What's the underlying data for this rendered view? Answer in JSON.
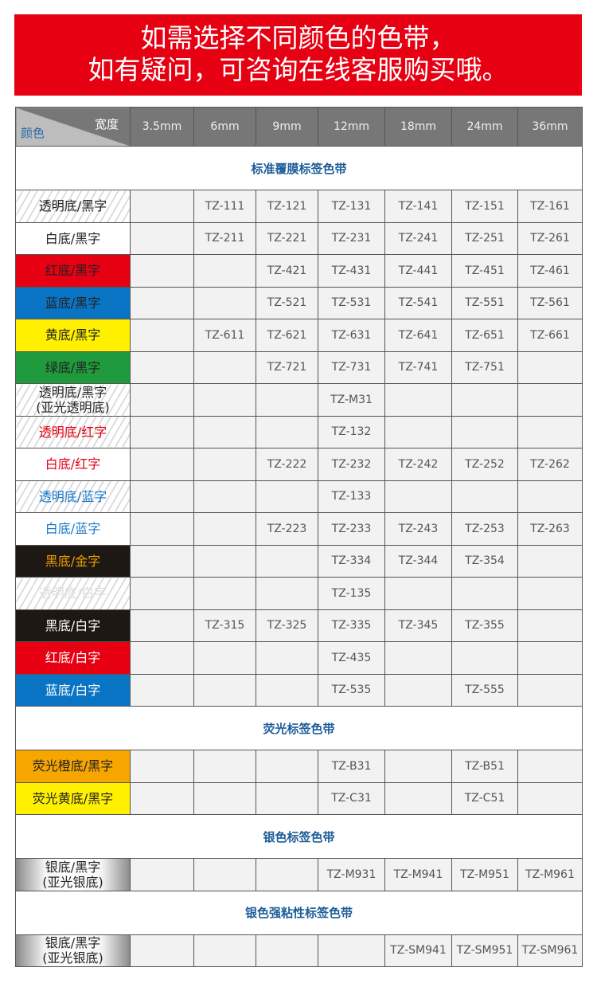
{
  "banner": {
    "line1": "如需选择不同颜色的色带，",
    "line2": "如有疑问，可咨询在线客服购买哦。"
  },
  "header": {
    "width_label": "宽度",
    "color_label": "颜色",
    "columns": [
      "3.5mm",
      "6mm",
      "9mm",
      "12mm",
      "18mm",
      "24mm",
      "36mm"
    ]
  },
  "sections": [
    {
      "title": "标准覆膜标签色带",
      "rows": [
        {
          "label": "透明底/黑字",
          "style": "striped",
          "fg": "#222222",
          "bg": "",
          "cells": [
            "",
            "TZ-111",
            "TZ-121",
            "TZ-131",
            "TZ-141",
            "TZ-151",
            "TZ-161"
          ]
        },
        {
          "label": "白底/黑字",
          "style": "",
          "fg": "#222222",
          "bg": "#ffffff",
          "cells": [
            "",
            "TZ-211",
            "TZ-221",
            "TZ-231",
            "TZ-241",
            "TZ-251",
            "TZ-261"
          ]
        },
        {
          "label": "红底/黑字",
          "style": "",
          "fg": "#222222",
          "bg": "#e60012",
          "cells": [
            "",
            "",
            "TZ-421",
            "TZ-431",
            "TZ-441",
            "TZ-451",
            "TZ-461"
          ]
        },
        {
          "label": "蓝底/黑字",
          "style": "",
          "fg": "#222222",
          "bg": "#0a74c4",
          "cells": [
            "",
            "",
            "TZ-521",
            "TZ-531",
            "TZ-541",
            "TZ-551",
            "TZ-561"
          ]
        },
        {
          "label": "黄底/黑字",
          "style": "",
          "fg": "#222222",
          "bg": "#fff000",
          "cells": [
            "",
            "TZ-611",
            "TZ-621",
            "TZ-631",
            "TZ-641",
            "TZ-651",
            "TZ-661"
          ]
        },
        {
          "label": "绿底/黑字",
          "style": "",
          "fg": "#222222",
          "bg": "#1f9a3c",
          "cells": [
            "",
            "",
            "TZ-721",
            "TZ-731",
            "TZ-741",
            "TZ-751",
            ""
          ]
        },
        {
          "label": "透明底/黑字\n(亚光透明底)",
          "style": "striped",
          "fg": "#222222",
          "bg": "",
          "cells": [
            "",
            "",
            "",
            "TZ-M31",
            "",
            "",
            ""
          ]
        },
        {
          "label": "透明底/红字",
          "style": "striped",
          "fg": "#e60012",
          "bg": "",
          "cells": [
            "",
            "",
            "",
            "TZ-132",
            "",
            "",
            ""
          ]
        },
        {
          "label": "白底/红字",
          "style": "",
          "fg": "#e60012",
          "bg": "#ffffff",
          "cells": [
            "",
            "",
            "TZ-222",
            "TZ-232",
            "TZ-242",
            "TZ-252",
            "TZ-262"
          ]
        },
        {
          "label": "透明底/蓝字",
          "style": "striped",
          "fg": "#1a78c8",
          "bg": "",
          "cells": [
            "",
            "",
            "",
            "TZ-133",
            "",
            "",
            ""
          ]
        },
        {
          "label": "白底/蓝字",
          "style": "",
          "fg": "#1a78c8",
          "bg": "#ffffff",
          "cells": [
            "",
            "",
            "TZ-223",
            "TZ-233",
            "TZ-243",
            "TZ-253",
            "TZ-263"
          ]
        },
        {
          "label": "黑底/金字",
          "style": "",
          "fg": "#e8a000",
          "bg": "#1e1814",
          "cells": [
            "",
            "",
            "",
            "TZ-334",
            "TZ-344",
            "TZ-354",
            ""
          ]
        },
        {
          "label": "透明底/白字",
          "style": "striped",
          "fg": "#dddddd",
          "bg": "",
          "cells": [
            "",
            "",
            "",
            "TZ-135",
            "",
            "",
            ""
          ]
        },
        {
          "label": "黑底/白字",
          "style": "",
          "fg": "#ffffff",
          "bg": "#1e1814",
          "cells": [
            "",
            "TZ-315",
            "TZ-325",
            "TZ-335",
            "TZ-345",
            "TZ-355",
            ""
          ]
        },
        {
          "label": "红底/白字",
          "style": "",
          "fg": "#ffffff",
          "bg": "#e60012",
          "cells": [
            "",
            "",
            "",
            "TZ-435",
            "",
            "",
            ""
          ]
        },
        {
          "label": "蓝底/白字",
          "style": "",
          "fg": "#ffffff",
          "bg": "#0a74c4",
          "cells": [
            "",
            "",
            "",
            "TZ-535",
            "",
            "TZ-555",
            ""
          ]
        }
      ]
    },
    {
      "title": "荧光标签色带",
      "rows": [
        {
          "label": "荧光橙底/黑字",
          "style": "",
          "fg": "#222222",
          "bg": "#f7a600",
          "cells": [
            "",
            "",
            "",
            "TZ-B31",
            "",
            "TZ-B51",
            ""
          ]
        },
        {
          "label": "荧光黄底/黑字",
          "style": "",
          "fg": "#222222",
          "bg": "#fff000",
          "cells": [
            "",
            "",
            "",
            "TZ-C31",
            "",
            "TZ-C51",
            ""
          ]
        }
      ]
    },
    {
      "title": "银色标签色带",
      "rows": [
        {
          "label": "银底/黑字\n(亚光银底)",
          "style": "silver",
          "fg": "#222222",
          "bg": "",
          "cells": [
            "",
            "",
            "",
            "TZ-M931",
            "TZ-M941",
            "TZ-M951",
            "TZ-M961"
          ]
        }
      ]
    },
    {
      "title": "银色强粘性标签色带",
      "rows": [
        {
          "label": "银底/黑字\n(亚光银底)",
          "style": "silver",
          "fg": "#222222",
          "bg": "",
          "cells": [
            "",
            "",
            "",
            "",
            "TZ-SM941",
            "TZ-SM951",
            "TZ-SM961"
          ]
        }
      ]
    }
  ]
}
